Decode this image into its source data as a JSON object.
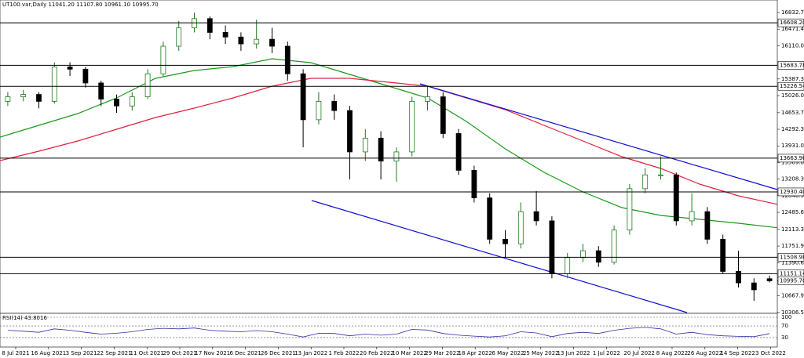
{
  "chart_data": {
    "type": "candlestick",
    "title": "UT100.var,Daily  11041.20 11107.80 10961.10 10995.70",
    "ylim": [
      10287.5,
      17105.5
    ],
    "yticks": [
      16832.75,
      {
        "value": 16471.4,
        "label": "16471.40"
      },
      16110.05,
      15387.35,
      {
        "value": 15026,
        "label": "15026.00"
      },
      {
        "value": 14653.7,
        "label": "14653.70"
      },
      14292.35,
      {
        "value": 13931,
        "label": "13931.00"
      },
      13569.65,
      {
        "value": 13208.3,
        "label": "13208.30"
      },
      12846.95,
      {
        "value": 12485.6,
        "label": "12485.60"
      },
      {
        "value": 12113.3,
        "label": "12113.30"
      },
      11751.95,
      {
        "value": 11390.6,
        "label": "11390.60"
      },
      {
        "value": 10667.9,
        "label": "10667.90"
      },
      10306.55
    ],
    "levels": [
      {
        "value": 16608.2,
        "label": "16608.20"
      },
      {
        "value": 15683.78,
        "label": "15683.78"
      },
      {
        "value": 15226.54,
        "label": "15226.54"
      },
      {
        "value": 13663.96,
        "label": "13663.96"
      },
      {
        "value": 12930.4,
        "label": "12930.40"
      },
      {
        "value": 11508.98,
        "label": "11508.98"
      },
      {
        "value": 11151.14,
        "label": "11151.14"
      }
    ],
    "last_price": {
      "value": 10995.7,
      "label": "10995.70"
    },
    "x_labels": [
      "8 Jul 2021",
      "16 Aug 2021",
      "3 Sep 2021",
      "22 Sep 2021",
      "11 Oct 2021",
      "29 Oct 2021",
      "17 Nov 2021",
      "6 Dec 2021",
      "26 Dec 2021",
      "13 Jan 2022",
      "1 Feb 2022",
      "20 Feb 2022",
      "10 Mar 2022",
      "29 Mar 2022",
      "18 Apr 2022",
      "6 May 2022",
      "25 May 2022",
      "13 Jun 2022",
      "1 Jul 2022",
      "20 Jul 2022",
      "8 Aug 2022",
      "26 Aug 2022",
      "14 Sep 2022",
      "3 Oct 2022"
    ],
    "up_color": "#1e7a1e",
    "down_color": "#000000",
    "candles": [
      {
        "open": 14900,
        "high": 15100,
        "low": 14800,
        "close": 15000
      },
      {
        "open": 15000,
        "high": 15150,
        "low": 14900,
        "close": 15050
      },
      {
        "open": 15050,
        "high": 15100,
        "low": 14750,
        "close": 14900
      },
      {
        "open": 14900,
        "high": 15750,
        "low": 14850,
        "close": 15650
      },
      {
        "open": 15650,
        "high": 15750,
        "low": 15450,
        "close": 15600
      },
      {
        "open": 15600,
        "high": 15650,
        "low": 15200,
        "close": 15300
      },
      {
        "open": 15300,
        "high": 15350,
        "low": 14800,
        "close": 14950
      },
      {
        "open": 14950,
        "high": 15050,
        "low": 14650,
        "close": 14800
      },
      {
        "open": 14800,
        "high": 15100,
        "low": 14700,
        "close": 15000
      },
      {
        "open": 15000,
        "high": 15600,
        "low": 14950,
        "close": 15500
      },
      {
        "open": 15500,
        "high": 16200,
        "low": 15450,
        "close": 16100
      },
      {
        "open": 16100,
        "high": 16650,
        "low": 16000,
        "close": 16500
      },
      {
        "open": 16500,
        "high": 16830,
        "low": 16400,
        "close": 16700
      },
      {
        "open": 16700,
        "high": 16750,
        "low": 16250,
        "close": 16400
      },
      {
        "open": 16400,
        "high": 16550,
        "low": 16150,
        "close": 16300
      },
      {
        "open": 16300,
        "high": 16400,
        "low": 16000,
        "close": 16150
      },
      {
        "open": 16150,
        "high": 16680,
        "low": 16050,
        "close": 16250
      },
      {
        "open": 16250,
        "high": 16500,
        "low": 15950,
        "close": 16100
      },
      {
        "open": 16100,
        "high": 16200,
        "low": 15350,
        "close": 15500
      },
      {
        "open": 15500,
        "high": 15600,
        "low": 13900,
        "close": 14500
      },
      {
        "open": 14500,
        "high": 15100,
        "low": 14400,
        "close": 14900
      },
      {
        "open": 14900,
        "high": 15050,
        "low": 14500,
        "close": 14700
      },
      {
        "open": 14700,
        "high": 14800,
        "low": 13200,
        "close": 13800
      },
      {
        "open": 13800,
        "high": 14300,
        "low": 13600,
        "close": 14100
      },
      {
        "open": 14100,
        "high": 14250,
        "low": 13200,
        "close": 13600
      },
      {
        "open": 13600,
        "high": 13900,
        "low": 13150,
        "close": 13800
      },
      {
        "open": 13800,
        "high": 15000,
        "low": 13700,
        "close": 14900
      },
      {
        "open": 14900,
        "high": 15250,
        "low": 14700,
        "close": 15000
      },
      {
        "open": 15000,
        "high": 15100,
        "low": 14100,
        "close": 14200
      },
      {
        "open": 14200,
        "high": 14300,
        "low": 13300,
        "close": 13400
      },
      {
        "open": 13400,
        "high": 13500,
        "low": 12700,
        "close": 12800
      },
      {
        "open": 12800,
        "high": 12900,
        "low": 11800,
        "close": 11900
      },
      {
        "open": 11900,
        "high": 12100,
        "low": 11500,
        "close": 11800
      },
      {
        "open": 11800,
        "high": 12700,
        "low": 11700,
        "close": 12500
      },
      {
        "open": 12500,
        "high": 12950,
        "low": 12200,
        "close": 12300
      },
      {
        "open": 12300,
        "high": 12400,
        "low": 11050,
        "close": 11150
      },
      {
        "open": 11150,
        "high": 11600,
        "low": 11050,
        "close": 11500
      },
      {
        "open": 11500,
        "high": 11800,
        "low": 11400,
        "close": 11650
      },
      {
        "open": 11650,
        "high": 11750,
        "low": 11300,
        "close": 11400
      },
      {
        "open": 11400,
        "high": 12200,
        "low": 11350,
        "close": 12100
      },
      {
        "open": 12100,
        "high": 13100,
        "low": 12000,
        "close": 13000
      },
      {
        "open": 13000,
        "high": 13450,
        "low": 12900,
        "close": 13300
      },
      {
        "open": 13300,
        "high": 13700,
        "low": 13200,
        "close": 13300
      },
      {
        "open": 13300,
        "high": 13350,
        "low": 12200,
        "close": 12300
      },
      {
        "open": 12300,
        "high": 12900,
        "low": 12200,
        "close": 12500
      },
      {
        "open": 12500,
        "high": 12600,
        "low": 11800,
        "close": 11900
      },
      {
        "open": 11900,
        "high": 12000,
        "low": 11150,
        "close": 11200
      },
      {
        "open": 11200,
        "high": 11650,
        "low": 10850,
        "close": 10950
      },
      {
        "open": 10950,
        "high": 11050,
        "low": 10560,
        "close": 10800
      },
      {
        "open": 11041.2,
        "high": 11107.8,
        "low": 10961.1,
        "close": 10995.7
      }
    ],
    "series": [
      {
        "color": "#1a9a1a",
        "values": [
          14123,
          14378,
          14634,
          14975,
          15401,
          15571,
          15657,
          15827,
          15742,
          15486,
          15230,
          14975,
          14463,
          13867,
          13356,
          12929,
          12588,
          12418,
          12333,
          12248,
          12150
        ]
      },
      {
        "color": "#e0203c",
        "values": [
          13611,
          13816,
          14037,
          14293,
          14549,
          14753,
          14975,
          15230,
          15401,
          15401,
          15316,
          15230,
          14975,
          14719,
          14378,
          14037,
          13696,
          13441,
          13100,
          12844,
          12660
        ]
      }
    ],
    "rsi": {
      "label": "RSI(14) 43.8016",
      "color": "#3030a0",
      "ylim": [
        0,
        100
      ],
      "yticks": [
        100,
        70,
        30
      ],
      "values": [
        55,
        52,
        48,
        60,
        55,
        48,
        42,
        45,
        50,
        58,
        62,
        60,
        63,
        55,
        52,
        50,
        54,
        50,
        42,
        32,
        45,
        44,
        36,
        42,
        38,
        42,
        58,
        56,
        44,
        38,
        35,
        32,
        36,
        50,
        46,
        33,
        44,
        48,
        44,
        55,
        62,
        65,
        60,
        42,
        48,
        40,
        36,
        34,
        33,
        43.8016
      ]
    }
  }
}
